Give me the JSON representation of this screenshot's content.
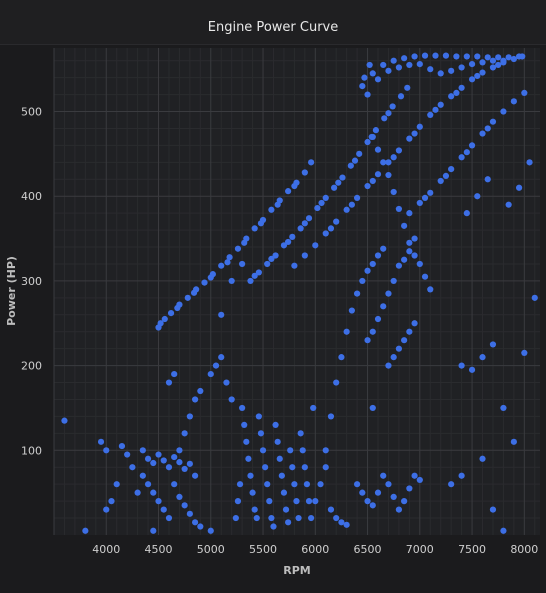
{
  "title": "Engine Power Curve",
  "chart_data": {
    "type": "scatter",
    "title": "Engine Power Curve",
    "xlabel": "RPM",
    "ylabel": "Power (HP)",
    "xlim": [
      3500,
      8150
    ],
    "ylim": [
      0,
      575
    ],
    "xticks": [
      4000,
      4500,
      5000,
      5500,
      6000,
      6500,
      7000,
      7500,
      8000
    ],
    "yticks": [
      100,
      200,
      300,
      400,
      500
    ],
    "grid": true,
    "color": "#3d6fe6",
    "series": [
      {
        "values": [
          [
            4500,
            245
          ],
          [
            4560,
            255
          ],
          [
            4620,
            262
          ],
          [
            4700,
            272
          ],
          [
            4780,
            280
          ],
          [
            4860,
            290
          ],
          [
            4940,
            298
          ],
          [
            5020,
            308
          ],
          [
            5100,
            318
          ],
          [
            5180,
            328
          ],
          [
            5260,
            338
          ],
          [
            5340,
            350
          ],
          [
            5420,
            362
          ],
          [
            5500,
            372
          ],
          [
            5580,
            384
          ],
          [
            5660,
            395
          ],
          [
            5740,
            406
          ],
          [
            5820,
            416
          ],
          [
            5900,
            428
          ],
          [
            5960,
            440
          ],
          [
            4520,
            250
          ],
          [
            4680,
            268
          ],
          [
            4840,
            286
          ],
          [
            5000,
            304
          ],
          [
            5160,
            322
          ],
          [
            5320,
            345
          ],
          [
            5480,
            368
          ],
          [
            5640,
            390
          ],
          [
            5800,
            412
          ],
          [
            5380,
            300
          ],
          [
            5460,
            310
          ],
          [
            5540,
            320
          ],
          [
            5620,
            330
          ],
          [
            5700,
            342
          ],
          [
            5780,
            352
          ],
          [
            5860,
            362
          ],
          [
            5940,
            374
          ],
          [
            6020,
            386
          ],
          [
            6100,
            398
          ],
          [
            6180,
            410
          ],
          [
            6260,
            422
          ],
          [
            6340,
            436
          ],
          [
            6420,
            450
          ],
          [
            6500,
            464
          ],
          [
            6580,
            478
          ],
          [
            6660,
            492
          ],
          [
            6740,
            506
          ],
          [
            6820,
            518
          ],
          [
            6880,
            528
          ],
          [
            5420,
            306
          ],
          [
            5580,
            326
          ],
          [
            5740,
            346
          ],
          [
            5900,
            368
          ],
          [
            6060,
            392
          ],
          [
            6220,
            416
          ],
          [
            6380,
            442
          ],
          [
            6540,
            470
          ],
          [
            6700,
            498
          ],
          [
            5800,
            318
          ],
          [
            5900,
            330
          ],
          [
            6000,
            342
          ],
          [
            6100,
            356
          ],
          [
            6200,
            370
          ],
          [
            6300,
            384
          ],
          [
            6400,
            398
          ],
          [
            6500,
            412
          ],
          [
            6600,
            426
          ],
          [
            6700,
            440
          ],
          [
            6800,
            454
          ],
          [
            6900,
            468
          ],
          [
            7000,
            482
          ],
          [
            7100,
            496
          ],
          [
            7200,
            508
          ],
          [
            7300,
            518
          ],
          [
            7400,
            528
          ],
          [
            7500,
            538
          ],
          [
            7600,
            546
          ],
          [
            7700,
            552
          ],
          [
            7800,
            558
          ],
          [
            7900,
            562
          ],
          [
            7980,
            565
          ],
          [
            6150,
            362
          ],
          [
            6350,
            390
          ],
          [
            6550,
            418
          ],
          [
            6750,
            446
          ],
          [
            6950,
            474
          ],
          [
            7150,
            502
          ],
          [
            7350,
            522
          ],
          [
            7550,
            542
          ],
          [
            7750,
            555
          ],
          [
            6900,
            380
          ],
          [
            7000,
            392
          ],
          [
            7100,
            404
          ],
          [
            7200,
            418
          ],
          [
            7300,
            432
          ],
          [
            7400,
            446
          ],
          [
            7500,
            460
          ],
          [
            7600,
            474
          ],
          [
            7700,
            488
          ],
          [
            7800,
            500
          ],
          [
            7900,
            512
          ],
          [
            8000,
            522
          ],
          [
            7050,
            398
          ],
          [
            7250,
            424
          ],
          [
            7450,
            452
          ],
          [
            7650,
            480
          ],
          [
            6450,
            530
          ],
          [
            6550,
            545
          ],
          [
            6650,
            555
          ],
          [
            6750,
            560
          ],
          [
            6850,
            563
          ],
          [
            6950,
            565
          ],
          [
            7050,
            566
          ],
          [
            7150,
            566
          ],
          [
            7250,
            566
          ],
          [
            7350,
            565
          ],
          [
            7450,
            565
          ],
          [
            7550,
            565
          ],
          [
            7650,
            564
          ],
          [
            7750,
            564
          ],
          [
            7850,
            564
          ],
          [
            7950,
            565
          ],
          [
            6500,
            520
          ],
          [
            6600,
            538
          ],
          [
            6700,
            548
          ],
          [
            6800,
            552
          ],
          [
            6900,
            555
          ],
          [
            7000,
            556
          ],
          [
            6470,
            540
          ],
          [
            6520,
            555
          ],
          [
            7100,
            550
          ],
          [
            7200,
            545
          ],
          [
            7300,
            548
          ],
          [
            7400,
            552
          ],
          [
            7500,
            556
          ],
          [
            7600,
            558
          ],
          [
            7700,
            560
          ],
          [
            7800,
            560
          ],
          [
            6550,
            470
          ],
          [
            6600,
            455
          ],
          [
            6650,
            440
          ],
          [
            6700,
            425
          ],
          [
            6750,
            405
          ],
          [
            6800,
            385
          ],
          [
            6850,
            365
          ],
          [
            6900,
            345
          ],
          [
            6950,
            330
          ],
          [
            7000,
            320
          ],
          [
            7050,
            305
          ],
          [
            7100,
            290
          ],
          [
            4350,
            100
          ],
          [
            4400,
            90
          ],
          [
            4450,
            85
          ],
          [
            4500,
            95
          ],
          [
            4550,
            88
          ],
          [
            4600,
            80
          ],
          [
            4650,
            92
          ],
          [
            4700,
            86
          ],
          [
            4750,
            78
          ],
          [
            4800,
            84
          ],
          [
            4850,
            70
          ],
          [
            4400,
            60
          ],
          [
            4450,
            50
          ],
          [
            4500,
            40
          ],
          [
            4550,
            30
          ],
          [
            4600,
            20
          ],
          [
            4650,
            60
          ],
          [
            4700,
            45
          ],
          [
            4750,
            35
          ],
          [
            4800,
            25
          ],
          [
            4850,
            15
          ],
          [
            4900,
            10
          ],
          [
            4350,
            70
          ],
          [
            4300,
            50
          ],
          [
            4250,
            80
          ],
          [
            4200,
            95
          ],
          [
            4150,
            105
          ],
          [
            4100,
            60
          ],
          [
            4050,
            40
          ],
          [
            4000,
            30
          ],
          [
            3950,
            110
          ],
          [
            4000,
            100
          ],
          [
            5300,
            150
          ],
          [
            5320,
            130
          ],
          [
            5340,
            110
          ],
          [
            5360,
            90
          ],
          [
            5380,
            70
          ],
          [
            5400,
            50
          ],
          [
            5420,
            30
          ],
          [
            5440,
            20
          ],
          [
            5460,
            140
          ],
          [
            5480,
            120
          ],
          [
            5500,
            100
          ],
          [
            5520,
            80
          ],
          [
            5540,
            60
          ],
          [
            5560,
            40
          ],
          [
            5580,
            20
          ],
          [
            5600,
            10
          ],
          [
            5620,
            130
          ],
          [
            5640,
            110
          ],
          [
            5660,
            90
          ],
          [
            5680,
            70
          ],
          [
            5700,
            50
          ],
          [
            5720,
            30
          ],
          [
            5740,
            15
          ],
          [
            5760,
            100
          ],
          [
            5780,
            80
          ],
          [
            5800,
            60
          ],
          [
            5820,
            40
          ],
          [
            5840,
            20
          ],
          [
            5860,
            120
          ],
          [
            5880,
            100
          ],
          [
            5900,
            80
          ],
          [
            5920,
            60
          ],
          [
            5940,
            40
          ],
          [
            5960,
            20
          ],
          [
            5980,
            150
          ],
          [
            5280,
            60
          ],
          [
            5260,
            40
          ],
          [
            5240,
            20
          ],
          [
            6100,
            100
          ],
          [
            6150,
            140
          ],
          [
            6200,
            180
          ],
          [
            6250,
            210
          ],
          [
            6300,
            240
          ],
          [
            6350,
            265
          ],
          [
            6400,
            285
          ],
          [
            6450,
            300
          ],
          [
            6500,
            312
          ],
          [
            6550,
            320
          ],
          [
            6600,
            330
          ],
          [
            6650,
            338
          ],
          [
            6100,
            80
          ],
          [
            6050,
            60
          ],
          [
            6000,
            40
          ],
          [
            6150,
            30
          ],
          [
            6200,
            20
          ],
          [
            6250,
            15
          ],
          [
            6300,
            12
          ],
          [
            6700,
            200
          ],
          [
            6750,
            210
          ],
          [
            6800,
            220
          ],
          [
            6850,
            230
          ],
          [
            6900,
            240
          ],
          [
            6950,
            250
          ],
          [
            6500,
            230
          ],
          [
            6550,
            240
          ],
          [
            6600,
            255
          ],
          [
            6650,
            270
          ],
          [
            6700,
            285
          ],
          [
            6750,
            300
          ],
          [
            6800,
            318
          ],
          [
            6850,
            325
          ],
          [
            6900,
            335
          ],
          [
            6950,
            350
          ],
          [
            6400,
            60
          ],
          [
            6450,
            50
          ],
          [
            6500,
            40
          ],
          [
            6550,
            35
          ],
          [
            6600,
            50
          ],
          [
            6650,
            70
          ],
          [
            6700,
            60
          ],
          [
            6750,
            45
          ],
          [
            6800,
            30
          ],
          [
            6850,
            40
          ],
          [
            6900,
            55
          ],
          [
            6950,
            70
          ],
          [
            7000,
            65
          ],
          [
            5000,
            190
          ],
          [
            5050,
            200
          ],
          [
            5100,
            210
          ],
          [
            5150,
            180
          ],
          [
            5200,
            160
          ],
          [
            4900,
            170
          ],
          [
            4850,
            160
          ],
          [
            4800,
            140
          ],
          [
            4750,
            120
          ],
          [
            4700,
            100
          ],
          [
            5100,
            260
          ],
          [
            5200,
            300
          ],
          [
            5300,
            320
          ],
          [
            4600,
            180
          ],
          [
            4650,
            190
          ],
          [
            7400,
            200
          ],
          [
            7500,
            195
          ],
          [
            7600,
            210
          ],
          [
            7700,
            225
          ],
          [
            7800,
            150
          ],
          [
            7900,
            110
          ],
          [
            8000,
            215
          ],
          [
            8100,
            280
          ],
          [
            7850,
            390
          ],
          [
            7950,
            410
          ],
          [
            8050,
            440
          ],
          [
            7450,
            380
          ],
          [
            7550,
            400
          ],
          [
            7650,
            420
          ],
          [
            7300,
            60
          ],
          [
            7400,
            70
          ],
          [
            7600,
            90
          ],
          [
            7700,
            30
          ],
          [
            7800,
            5
          ],
          [
            3600,
            135
          ],
          [
            3800,
            5
          ],
          [
            4450,
            5
          ],
          [
            5000,
            5
          ],
          [
            6550,
            150
          ]
        ]
      }
    ]
  }
}
